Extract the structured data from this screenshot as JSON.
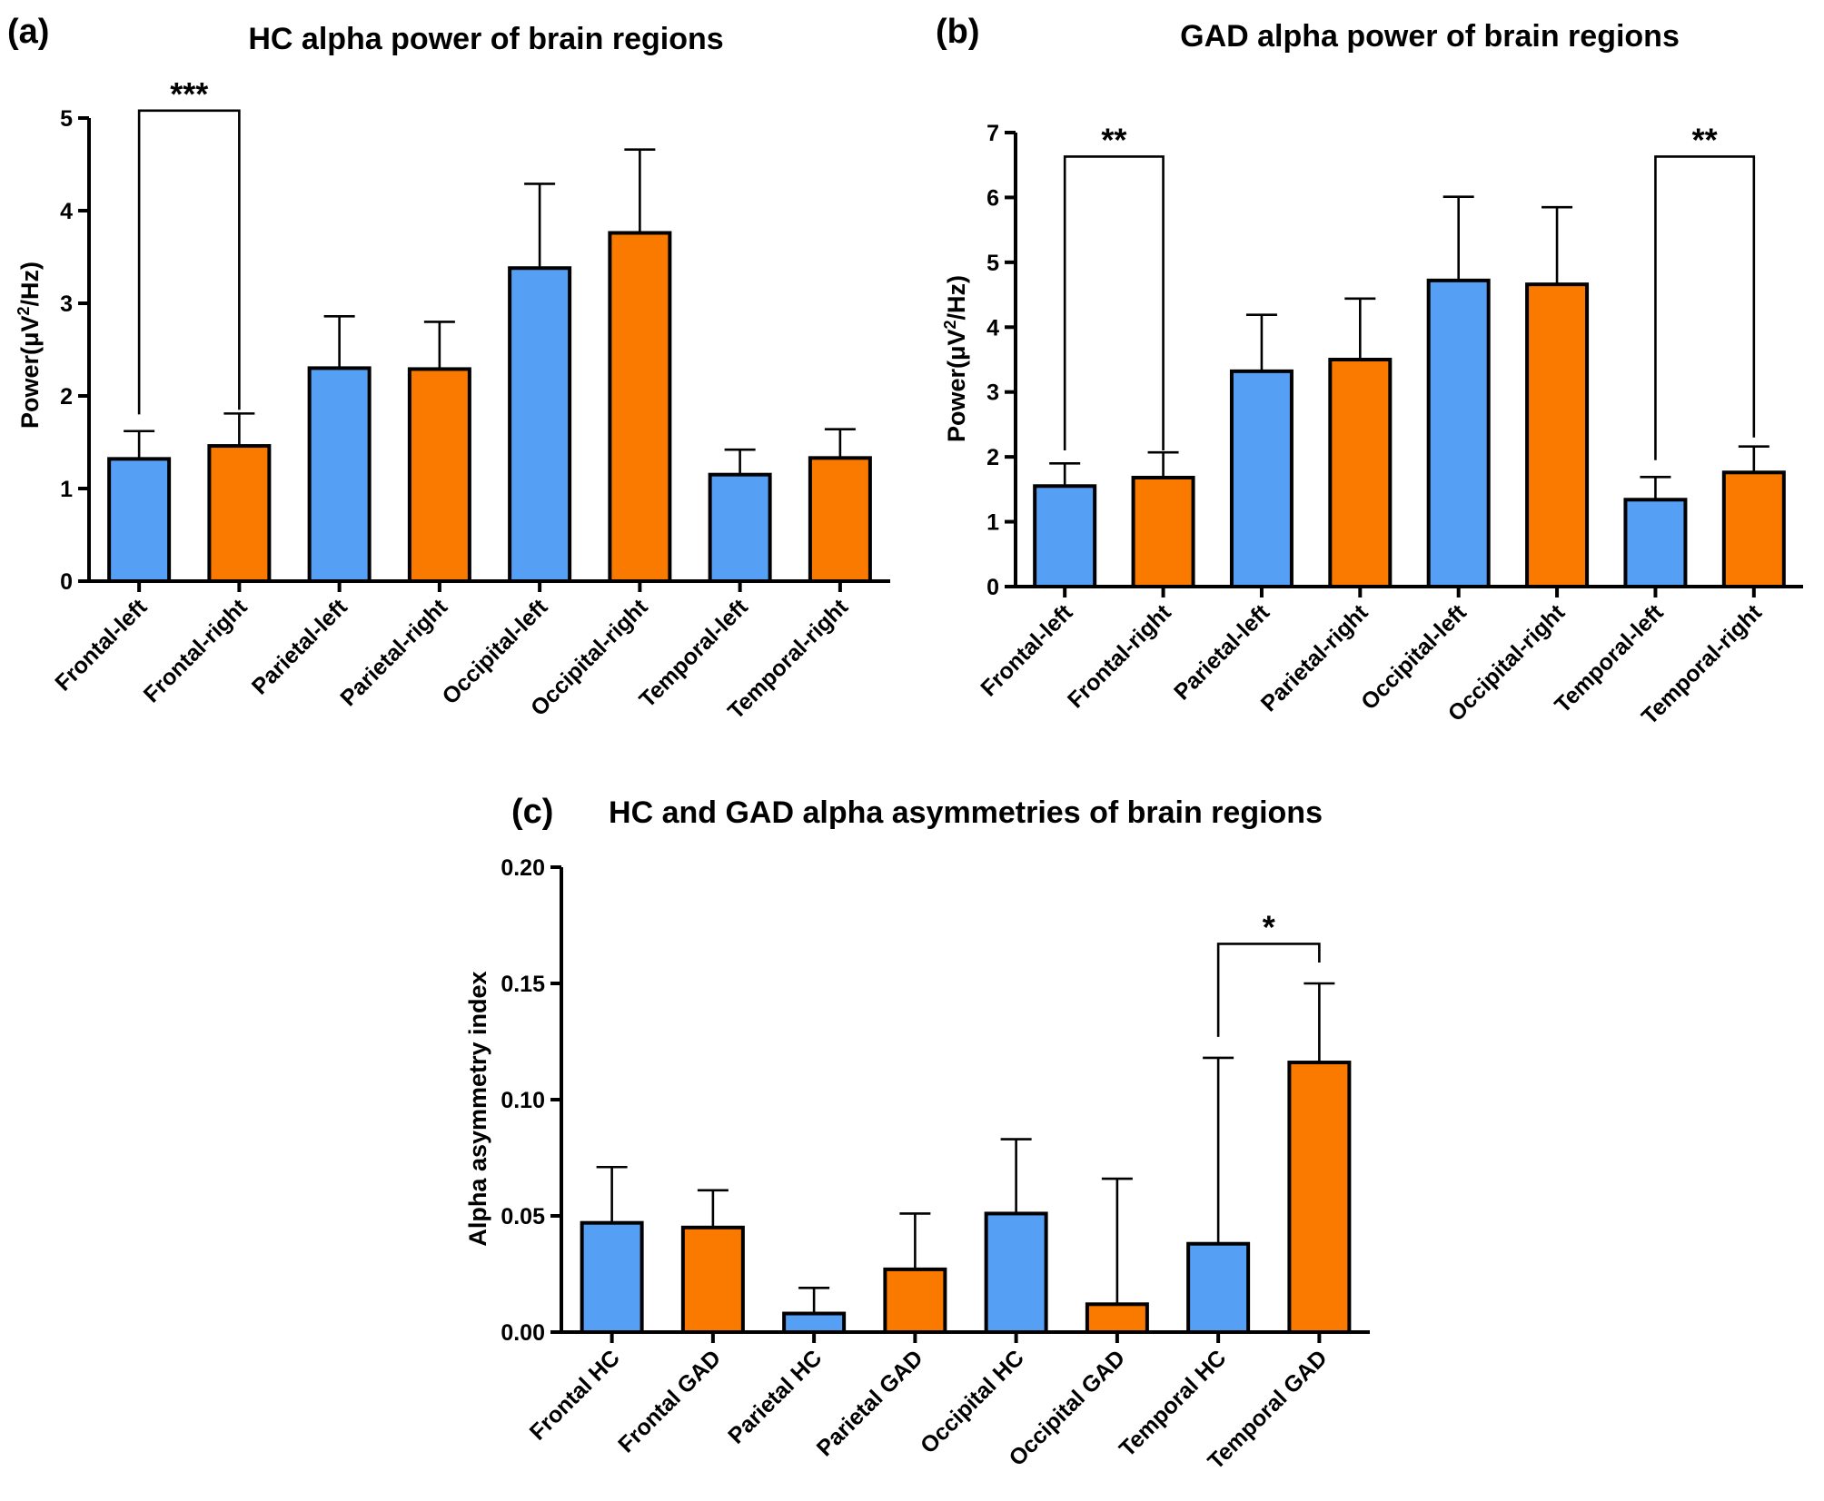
{
  "colors": {
    "hc": "#55a0f5",
    "gad": "#fa7a00"
  },
  "panels": [
    {
      "panel_label": "(a)",
      "chart_data": {
        "type": "bar",
        "title": "HC alpha power of brain regions",
        "ylabel_parts": [
          "Power(μV",
          "2",
          "/Hz)"
        ],
        "ylim": [
          0,
          5
        ],
        "yticks": [
          0,
          1,
          2,
          3,
          4,
          5
        ],
        "categories": [
          "Frontal-left",
          "Frontal-right",
          "Parietal-left",
          "Parietal-right",
          "Occipital-left",
          "Occipital-right",
          "Temporal-left",
          "Temporal-right"
        ],
        "values": [
          1.32,
          1.46,
          2.3,
          2.29,
          3.38,
          3.76,
          1.15,
          1.33
        ],
        "errors": [
          0.3,
          0.35,
          0.56,
          0.51,
          0.91,
          0.9,
          0.27,
          0.31
        ],
        "bar_colors": [
          "hc",
          "gad",
          "hc",
          "gad",
          "hc",
          "gad",
          "hc",
          "gad"
        ],
        "significance": [
          {
            "from": 0,
            "to": 1,
            "label": "***",
            "y": 5.08,
            "left_end": 1.8,
            "right_end": 1.85
          }
        ]
      }
    },
    {
      "panel_label": "(b)",
      "chart_data": {
        "type": "bar",
        "title": "GAD alpha power of brain regions",
        "ylabel_parts": [
          "Power(μV",
          "2",
          "/Hz)"
        ],
        "ylim": [
          0,
          7
        ],
        "yticks": [
          0,
          1,
          2,
          3,
          4,
          5,
          6,
          7
        ],
        "categories": [
          "Frontal-left",
          "Frontal-right",
          "Parietal-left",
          "Parietal-right",
          "Occipital-left",
          "Occipital-right",
          "Temporal-left",
          "Temporal-right"
        ],
        "values": [
          1.55,
          1.68,
          3.32,
          3.5,
          4.72,
          4.66,
          1.34,
          1.76
        ],
        "errors": [
          0.35,
          0.39,
          0.87,
          0.94,
          1.29,
          1.19,
          0.35,
          0.4
        ],
        "bar_colors": [
          "hc",
          "gad",
          "hc",
          "gad",
          "hc",
          "gad",
          "hc",
          "gad"
        ],
        "significance": [
          {
            "from": 0,
            "to": 1,
            "label": "**",
            "y": 6.63,
            "left_end": 2.1,
            "right_end": 2.1
          },
          {
            "from": 6,
            "to": 7,
            "label": "**",
            "y": 6.63,
            "left_end": 1.95,
            "right_end": 2.3
          }
        ]
      }
    },
    {
      "panel_label": "(c)",
      "chart_data": {
        "type": "bar",
        "title": "HC and GAD alpha asymmetries of brain regions",
        "ylabel_parts": [
          "Alpha asymmetry index"
        ],
        "ylim": [
          0,
          0.2
        ],
        "yticks": [
          0.0,
          0.05,
          0.1,
          0.15,
          0.2
        ],
        "ytick_labels": [
          "0.00",
          "0.05",
          "0.10",
          "0.15",
          "0.20"
        ],
        "categories": [
          "Frontal HC",
          "Frontal GAD",
          "Parietal HC",
          "Parietal GAD",
          "Occipital HC",
          "Occipital GAD",
          "Temporal HC",
          "Temporal GAD"
        ],
        "values": [
          0.047,
          0.045,
          0.008,
          0.027,
          0.051,
          0.012,
          0.038,
          0.116
        ],
        "errors": [
          0.024,
          0.016,
          0.011,
          0.024,
          0.032,
          0.054,
          0.08,
          0.034
        ],
        "bar_colors": [
          "hc",
          "gad",
          "hc",
          "gad",
          "hc",
          "gad",
          "hc",
          "gad"
        ],
        "significance": [
          {
            "from": 6,
            "to": 7,
            "label": "*",
            "y": 0.167,
            "left_end": 0.127,
            "right_end": 0.159
          }
        ]
      }
    }
  ]
}
